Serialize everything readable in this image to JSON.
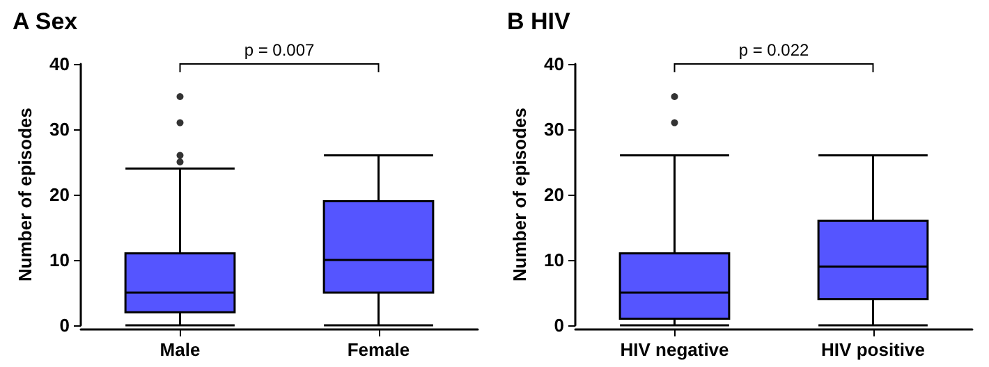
{
  "chart_data": [
    {
      "type": "box",
      "title": "A Sex",
      "ylabel": "Number of episodes",
      "categories": [
        "Male",
        "Female"
      ],
      "color": "#5555ff",
      "boxes": [
        {
          "low": 0,
          "q1": 2,
          "median": 5,
          "q3": 11,
          "high": 24,
          "outliers": [
            25,
            26,
            31,
            35
          ]
        },
        {
          "low": 0,
          "q1": 5,
          "median": 10,
          "q3": 19,
          "high": 26
        }
      ],
      "ylim": [
        0,
        40
      ],
      "yticks": [
        0,
        10,
        20,
        30,
        40
      ],
      "grid": false,
      "annotations": [
        "p = 0.007"
      ]
    },
    {
      "type": "box",
      "title": "B HIV",
      "ylabel": "Number of episodes",
      "categories": [
        "HIV negative",
        "HIV positive"
      ],
      "color": "#5555ff",
      "boxes": [
        {
          "low": 0,
          "q1": 1,
          "median": 5,
          "q3": 11,
          "high": 26,
          "outliers": [
            31,
            35
          ]
        },
        {
          "low": 0,
          "q1": 4,
          "median": 9,
          "q3": 16,
          "high": 26
        }
      ],
      "ylim": [
        0,
        40
      ],
      "yticks": [
        0,
        10,
        20,
        30,
        40
      ],
      "grid": false,
      "annotations": [
        "p = 0.022"
      ]
    }
  ]
}
